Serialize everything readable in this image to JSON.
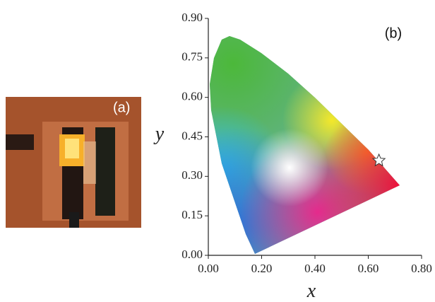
{
  "photo_label": "(a)",
  "chart_data": {
    "type": "scatter",
    "panel_label": "(b)",
    "x_label": "x",
    "y_label": "y",
    "x": [
      0.64
    ],
    "series": [
      {
        "values": [
          0.36
        ],
        "color": "#ffffff"
      }
    ],
    "xlim": [
      0,
      0.8
    ],
    "ylim": [
      0,
      0.9
    ],
    "xticks": [
      {
        "value": 0,
        "label": "0.00"
      },
      {
        "value": 0.2,
        "label": "0.20"
      },
      {
        "value": 0.4,
        "label": "0.40"
      },
      {
        "value": 0.6,
        "label": "0.60"
      },
      {
        "value": 0.8,
        "label": "0.80"
      }
    ],
    "yticks": [
      {
        "value": 0,
        "label": "0.00"
      },
      {
        "value": 0.15,
        "label": "0.15"
      },
      {
        "value": 0.3,
        "label": "0.30"
      },
      {
        "value": 0.45,
        "label": "0.45"
      },
      {
        "value": 0.6,
        "label": "0.60"
      },
      {
        "value": 0.75,
        "label": "0.75"
      },
      {
        "value": 0.9,
        "label": "0.90"
      }
    ]
  }
}
